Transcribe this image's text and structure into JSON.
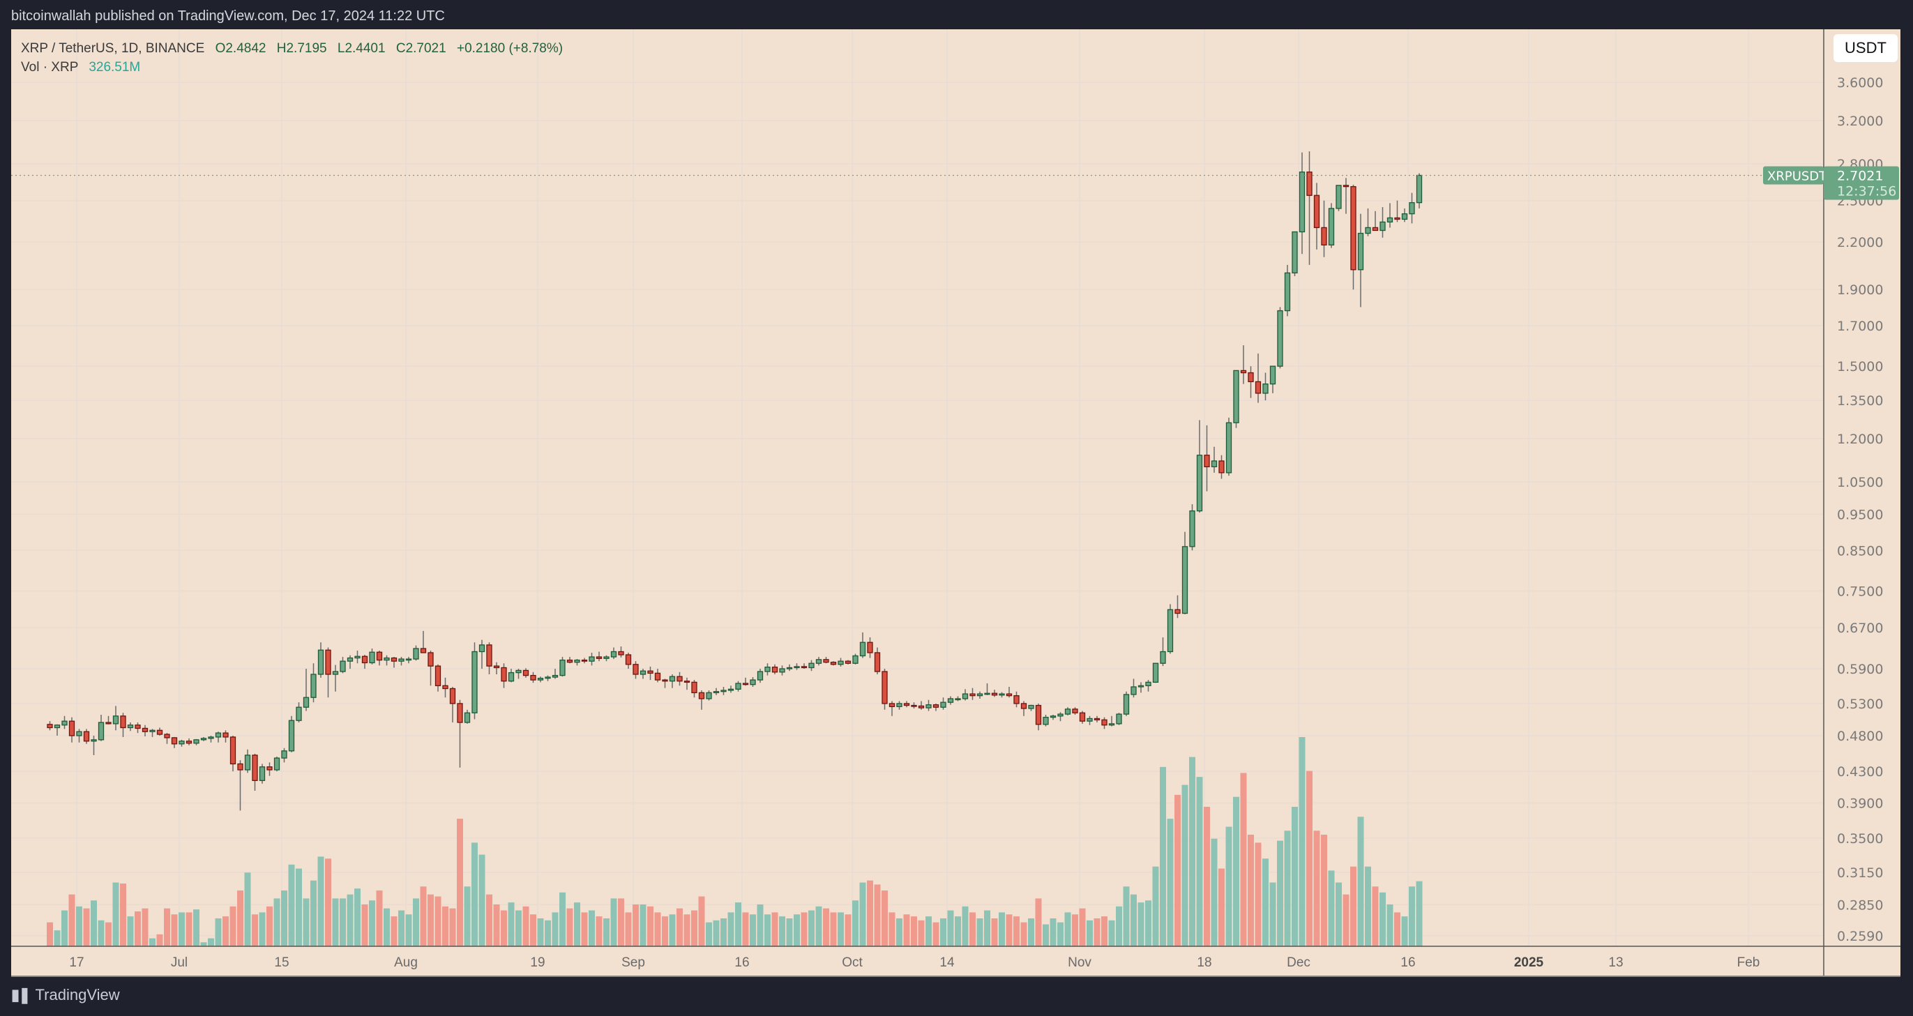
{
  "header": {
    "published": "bitcoinwallah published on TradingView.com, Dec 17, 2024 11:22 UTC"
  },
  "legend": {
    "symbol": "XRP / TetherUS, 1D, BINANCE",
    "open": "O2.4842",
    "high": "H2.7195",
    "low": "L2.4401",
    "close": "C2.7021",
    "change": "+0.2180 (+8.78%)",
    "vol_label": "Vol · XRP",
    "vol_value": "326.51M"
  },
  "price_axis": {
    "currency_button": "USDT",
    "ticks": [
      "3.6000",
      "3.2000",
      "2.8000",
      "2.5000",
      "2.2000",
      "1.9000",
      "1.7000",
      "1.5000",
      "1.3500",
      "1.2000",
      "1.0500",
      "0.9500",
      "0.8500",
      "0.7500",
      "0.6700",
      "0.5900",
      "0.5300",
      "0.4800",
      "0.4300",
      "0.3900",
      "0.3500",
      "0.3150",
      "0.2850",
      "0.2590"
    ],
    "last_price_label": {
      "symbol": "XRPUSDT",
      "price": "2.7021",
      "countdown": "12:37:56"
    }
  },
  "time_axis": {
    "labels": [
      {
        "text": "17",
        "x": 110,
        "bold": false
      },
      {
        "text": "Jul",
        "x": 257,
        "bold": false
      },
      {
        "text": "15",
        "x": 404,
        "bold": false
      },
      {
        "text": "Aug",
        "x": 582,
        "bold": false
      },
      {
        "text": "19",
        "x": 771,
        "bold": false
      },
      {
        "text": "Sep",
        "x": 908,
        "bold": false
      },
      {
        "text": "16",
        "x": 1064,
        "bold": false
      },
      {
        "text": "Oct",
        "x": 1222,
        "bold": false
      },
      {
        "text": "14",
        "x": 1358,
        "bold": false
      },
      {
        "text": "Nov",
        "x": 1548,
        "bold": false
      },
      {
        "text": "18",
        "x": 1727,
        "bold": false
      },
      {
        "text": "Dec",
        "x": 1862,
        "bold": false
      },
      {
        "text": "16",
        "x": 2019,
        "bold": false
      },
      {
        "text": "2025",
        "x": 2192,
        "bold": true
      },
      {
        "text": "13",
        "x": 2317,
        "bold": false
      },
      {
        "text": "Feb",
        "x": 2507,
        "bold": false
      }
    ]
  },
  "footer": {
    "brand": "TradingView"
  },
  "colors": {
    "background": "#f2e0d0",
    "up_body": "#6aa584",
    "up_border": "#1e5a38",
    "down_body": "#d9503f",
    "down_border": "#6e1410",
    "vol_up": "#8dc3b5",
    "vol_down": "#f0998d",
    "grid": "#e8dcd4",
    "last_price": "#6aa584"
  },
  "chart_data": {
    "type": "candlestick",
    "title": "XRP / TetherUS, 1D, BINANCE",
    "scale": "log",
    "ylim": [
      0.259,
      3.6
    ],
    "x_range": [
      "2024-06-08",
      "2025-02-10"
    ],
    "series_fields": [
      "open",
      "high",
      "low",
      "close",
      "volume_M"
    ],
    "candles": [
      [
        0.497,
        0.502,
        0.488,
        0.492,
        120
      ],
      [
        0.492,
        0.497,
        0.48,
        0.496,
        80
      ],
      [
        0.496,
        0.51,
        0.49,
        0.502,
        180
      ],
      [
        0.502,
        0.508,
        0.47,
        0.48,
        260
      ],
      [
        0.48,
        0.49,
        0.47,
        0.486,
        200
      ],
      [
        0.486,
        0.49,
        0.468,
        0.472,
        190
      ],
      [
        0.472,
        0.48,
        0.452,
        0.474,
        230
      ],
      [
        0.474,
        0.512,
        0.472,
        0.5,
        130
      ],
      [
        0.5,
        0.51,
        0.497,
        0.498,
        120
      ],
      [
        0.498,
        0.526,
        0.488,
        0.51,
        320
      ],
      [
        0.51,
        0.515,
        0.478,
        0.492,
        315
      ],
      [
        0.492,
        0.5,
        0.487,
        0.496,
        150
      ],
      [
        0.496,
        0.5,
        0.484,
        0.491,
        175
      ],
      [
        0.491,
        0.496,
        0.479,
        0.486,
        190
      ],
      [
        0.486,
        0.49,
        0.478,
        0.488,
        40
      ],
      [
        0.488,
        0.492,
        0.48,
        0.482,
        60
      ],
      [
        0.482,
        0.484,
        0.468,
        0.477,
        190
      ],
      [
        0.477,
        0.478,
        0.462,
        0.468,
        160
      ],
      [
        0.468,
        0.474,
        0.464,
        0.472,
        170
      ],
      [
        0.472,
        0.476,
        0.466,
        0.469,
        170
      ],
      [
        0.469,
        0.475,
        0.466,
        0.474,
        185
      ],
      [
        0.474,
        0.478,
        0.472,
        0.476,
        20
      ],
      [
        0.476,
        0.48,
        0.47,
        0.478,
        40
      ],
      [
        0.478,
        0.486,
        0.47,
        0.484,
        140
      ],
      [
        0.484,
        0.488,
        0.47,
        0.478,
        150
      ],
      [
        0.478,
        0.48,
        0.43,
        0.44,
        200
      ],
      [
        0.44,
        0.445,
        0.381,
        0.432,
        280
      ],
      [
        0.432,
        0.46,
        0.428,
        0.452,
        370
      ],
      [
        0.452,
        0.454,
        0.405,
        0.418,
        160
      ],
      [
        0.418,
        0.44,
        0.414,
        0.436,
        170
      ],
      [
        0.436,
        0.442,
        0.424,
        0.432,
        200
      ],
      [
        0.432,
        0.45,
        0.43,
        0.448,
        240
      ],
      [
        0.448,
        0.462,
        0.442,
        0.458,
        280
      ],
      [
        0.458,
        0.51,
        0.456,
        0.503,
        410
      ],
      [
        0.503,
        0.532,
        0.5,
        0.524,
        390
      ],
      [
        0.524,
        0.59,
        0.518,
        0.54,
        240
      ],
      [
        0.54,
        0.6,
        0.532,
        0.58,
        330
      ],
      [
        0.58,
        0.64,
        0.574,
        0.625,
        450
      ],
      [
        0.625,
        0.63,
        0.54,
        0.58,
        440
      ],
      [
        0.58,
        0.597,
        0.55,
        0.585,
        240
      ],
      [
        0.585,
        0.612,
        0.582,
        0.604,
        240
      ],
      [
        0.604,
        0.615,
        0.59,
        0.61,
        260
      ],
      [
        0.61,
        0.624,
        0.6,
        0.613,
        290
      ],
      [
        0.613,
        0.616,
        0.59,
        0.601,
        210
      ],
      [
        0.601,
        0.628,
        0.598,
        0.621,
        230
      ],
      [
        0.621,
        0.624,
        0.596,
        0.606,
        280
      ],
      [
        0.606,
        0.615,
        0.596,
        0.61,
        190
      ],
      [
        0.61,
        0.612,
        0.592,
        0.604,
        150
      ],
      [
        0.604,
        0.612,
        0.596,
        0.608,
        180
      ],
      [
        0.608,
        0.612,
        0.6,
        0.608,
        160
      ],
      [
        0.608,
        0.634,
        0.605,
        0.628,
        240
      ],
      [
        0.628,
        0.663,
        0.625,
        0.62,
        300
      ],
      [
        0.62,
        0.624,
        0.56,
        0.595,
        260
      ],
      [
        0.595,
        0.598,
        0.55,
        0.56,
        250
      ],
      [
        0.56,
        0.574,
        0.54,
        0.555,
        200
      ],
      [
        0.555,
        0.558,
        0.5,
        0.53,
        190
      ],
      [
        0.53,
        0.536,
        0.435,
        0.5,
        640
      ],
      [
        0.5,
        0.52,
        0.498,
        0.515,
        300
      ],
      [
        0.515,
        0.64,
        0.505,
        0.622,
        520
      ],
      [
        0.622,
        0.645,
        0.59,
        0.635,
        460
      ],
      [
        0.635,
        0.64,
        0.58,
        0.595,
        260
      ],
      [
        0.595,
        0.602,
        0.58,
        0.592,
        210
      ],
      [
        0.592,
        0.6,
        0.556,
        0.568,
        180
      ],
      [
        0.568,
        0.59,
        0.566,
        0.583,
        220
      ],
      [
        0.583,
        0.59,
        0.572,
        0.587,
        180
      ],
      [
        0.587,
        0.591,
        0.574,
        0.578,
        200
      ],
      [
        0.578,
        0.584,
        0.565,
        0.57,
        160
      ],
      [
        0.57,
        0.576,
        0.566,
        0.573,
        140
      ],
      [
        0.573,
        0.578,
        0.568,
        0.575,
        130
      ],
      [
        0.575,
        0.59,
        0.572,
        0.578,
        170
      ],
      [
        0.578,
        0.612,
        0.576,
        0.606,
        270
      ],
      [
        0.606,
        0.612,
        0.6,
        0.602,
        190
      ],
      [
        0.602,
        0.608,
        0.596,
        0.606,
        220
      ],
      [
        0.606,
        0.61,
        0.6,
        0.604,
        170
      ],
      [
        0.604,
        0.62,
        0.596,
        0.612,
        180
      ],
      [
        0.612,
        0.622,
        0.604,
        0.609,
        150
      ],
      [
        0.609,
        0.615,
        0.604,
        0.612,
        140
      ],
      [
        0.612,
        0.63,
        0.608,
        0.622,
        240
      ],
      [
        0.622,
        0.632,
        0.611,
        0.616,
        240
      ],
      [
        0.616,
        0.62,
        0.59,
        0.598,
        170
      ],
      [
        0.598,
        0.604,
        0.572,
        0.58,
        210
      ],
      [
        0.58,
        0.59,
        0.572,
        0.586,
        210
      ],
      [
        0.586,
        0.594,
        0.57,
        0.582,
        200
      ],
      [
        0.582,
        0.59,
        0.566,
        0.57,
        170
      ],
      [
        0.57,
        0.572,
        0.556,
        0.568,
        150
      ],
      [
        0.568,
        0.58,
        0.556,
        0.576,
        160
      ],
      [
        0.576,
        0.584,
        0.56,
        0.568,
        190
      ],
      [
        0.568,
        0.574,
        0.553,
        0.566,
        160
      ],
      [
        0.566,
        0.57,
        0.54,
        0.548,
        180
      ],
      [
        0.548,
        0.552,
        0.52,
        0.538,
        250
      ],
      [
        0.538,
        0.552,
        0.535,
        0.548,
        120
      ],
      [
        0.548,
        0.556,
        0.544,
        0.55,
        130
      ],
      [
        0.55,
        0.558,
        0.544,
        0.552,
        140
      ],
      [
        0.552,
        0.56,
        0.548,
        0.554,
        170
      ],
      [
        0.554,
        0.568,
        0.55,
        0.564,
        220
      ],
      [
        0.564,
        0.574,
        0.56,
        0.562,
        170
      ],
      [
        0.562,
        0.575,
        0.558,
        0.57,
        160
      ],
      [
        0.57,
        0.59,
        0.565,
        0.585,
        210
      ],
      [
        0.585,
        0.6,
        0.578,
        0.593,
        160
      ],
      [
        0.593,
        0.598,
        0.58,
        0.584,
        170
      ],
      [
        0.584,
        0.596,
        0.578,
        0.59,
        150
      ],
      [
        0.59,
        0.598,
        0.586,
        0.592,
        140
      ],
      [
        0.592,
        0.6,
        0.588,
        0.594,
        160
      ],
      [
        0.594,
        0.6,
        0.59,
        0.592,
        170
      ],
      [
        0.592,
        0.606,
        0.586,
        0.6,
        180
      ],
      [
        0.6,
        0.612,
        0.596,
        0.607,
        200
      ],
      [
        0.607,
        0.612,
        0.6,
        0.602,
        190
      ],
      [
        0.602,
        0.604,
        0.596,
        0.598,
        170
      ],
      [
        0.598,
        0.61,
        0.594,
        0.604,
        170
      ],
      [
        0.604,
        0.606,
        0.598,
        0.6,
        160
      ],
      [
        0.6,
        0.618,
        0.598,
        0.614,
        230
      ],
      [
        0.614,
        0.66,
        0.61,
        0.64,
        320
      ],
      [
        0.64,
        0.65,
        0.61,
        0.62,
        330
      ],
      [
        0.62,
        0.63,
        0.58,
        0.585,
        310
      ],
      [
        0.585,
        0.59,
        0.52,
        0.53,
        280
      ],
      [
        0.53,
        0.534,
        0.51,
        0.525,
        170
      ],
      [
        0.525,
        0.534,
        0.52,
        0.53,
        140
      ],
      [
        0.53,
        0.534,
        0.524,
        0.527,
        160
      ],
      [
        0.527,
        0.532,
        0.522,
        0.526,
        150
      ],
      [
        0.526,
        0.534,
        0.52,
        0.523,
        130
      ],
      [
        0.523,
        0.536,
        0.518,
        0.528,
        150
      ],
      [
        0.528,
        0.53,
        0.518,
        0.524,
        120
      ],
      [
        0.524,
        0.54,
        0.52,
        0.532,
        140
      ],
      [
        0.532,
        0.542,
        0.528,
        0.538,
        180
      ],
      [
        0.538,
        0.542,
        0.534,
        0.538,
        150
      ],
      [
        0.538,
        0.554,
        0.535,
        0.546,
        200
      ],
      [
        0.546,
        0.556,
        0.536,
        0.543,
        170
      ],
      [
        0.543,
        0.55,
        0.538,
        0.546,
        140
      ],
      [
        0.546,
        0.564,
        0.544,
        0.547,
        180
      ],
      [
        0.547,
        0.553,
        0.541,
        0.544,
        140
      ],
      [
        0.544,
        0.549,
        0.54,
        0.546,
        170
      ],
      [
        0.546,
        0.558,
        0.54,
        0.543,
        160
      ],
      [
        0.543,
        0.55,
        0.524,
        0.53,
        150
      ],
      [
        0.53,
        0.534,
        0.51,
        0.522,
        120
      ],
      [
        0.522,
        0.528,
        0.518,
        0.527,
        140
      ],
      [
        0.527,
        0.53,
        0.488,
        0.497,
        240
      ],
      [
        0.497,
        0.512,
        0.494,
        0.508,
        110
      ],
      [
        0.508,
        0.512,
        0.504,
        0.51,
        140
      ],
      [
        0.51,
        0.516,
        0.502,
        0.513,
        120
      ],
      [
        0.513,
        0.524,
        0.511,
        0.521,
        170
      ],
      [
        0.521,
        0.524,
        0.512,
        0.515,
        160
      ],
      [
        0.515,
        0.518,
        0.498,
        0.502,
        190
      ],
      [
        0.502,
        0.51,
        0.496,
        0.506,
        130
      ],
      [
        0.506,
        0.51,
        0.5,
        0.504,
        140
      ],
      [
        0.504,
        0.508,
        0.49,
        0.496,
        150
      ],
      [
        0.496,
        0.51,
        0.494,
        0.498,
        130
      ],
      [
        0.498,
        0.515,
        0.496,
        0.513,
        200
      ],
      [
        0.513,
        0.55,
        0.51,
        0.545,
        300
      ],
      [
        0.545,
        0.572,
        0.54,
        0.558,
        260
      ],
      [
        0.558,
        0.566,
        0.548,
        0.56,
        220
      ],
      [
        0.56,
        0.57,
        0.55,
        0.566,
        230
      ],
      [
        0.566,
        0.6,
        0.565,
        0.6,
        400
      ],
      [
        0.6,
        0.65,
        0.595,
        0.622,
        900
      ],
      [
        0.622,
        0.72,
        0.618,
        0.708,
        640
      ],
      [
        0.708,
        0.74,
        0.69,
        0.7,
        760
      ],
      [
        0.7,
        0.9,
        0.698,
        0.86,
        810
      ],
      [
        0.86,
        0.98,
        0.85,
        0.96,
        950
      ],
      [
        0.96,
        1.27,
        0.955,
        1.14,
        850
      ],
      [
        1.14,
        1.25,
        1.02,
        1.1,
        700
      ],
      [
        1.1,
        1.17,
        1.08,
        1.12,
        540
      ],
      [
        1.12,
        1.14,
        1.06,
        1.08,
        390
      ],
      [
        1.08,
        1.28,
        1.07,
        1.26,
        600
      ],
      [
        1.26,
        1.46,
        1.24,
        1.48,
        750
      ],
      [
        1.48,
        1.6,
        1.42,
        1.47,
        870
      ],
      [
        1.47,
        1.5,
        1.36,
        1.43,
        560
      ],
      [
        1.43,
        1.56,
        1.34,
        1.38,
        520
      ],
      [
        1.38,
        1.47,
        1.35,
        1.42,
        440
      ],
      [
        1.42,
        1.5,
        1.38,
        1.5,
        320
      ],
      [
        1.5,
        1.8,
        1.49,
        1.78,
        530
      ],
      [
        1.78,
        2.05,
        1.75,
        2.0,
        580
      ],
      [
        2.0,
        2.2,
        1.98,
        2.27,
        700
      ],
      [
        2.27,
        2.9,
        2.12,
        2.73,
        1050
      ],
      [
        2.73,
        2.91,
        2.05,
        2.54,
        880
      ],
      [
        2.54,
        2.64,
        2.15,
        2.3,
        580
      ],
      [
        2.3,
        2.5,
        2.1,
        2.18,
        560
      ],
      [
        2.18,
        2.48,
        2.16,
        2.44,
        380
      ],
      [
        2.44,
        2.62,
        2.42,
        2.62,
        320
      ],
      [
        2.62,
        2.68,
        2.4,
        2.61,
        260
      ],
      [
        2.61,
        2.625,
        1.9,
        2.02,
        400
      ],
      [
        2.02,
        2.4,
        1.8,
        2.26,
        650
      ],
      [
        2.26,
        2.44,
        2.24,
        2.3,
        400
      ],
      [
        2.3,
        2.42,
        2.29,
        2.28,
        300
      ],
      [
        2.28,
        2.45,
        2.23,
        2.34,
        270
      ],
      [
        2.34,
        2.48,
        2.3,
        2.37,
        210
      ],
      [
        2.37,
        2.5,
        2.34,
        2.36,
        170
      ],
      [
        2.36,
        2.44,
        2.34,
        2.4,
        150
      ],
      [
        2.4,
        2.56,
        2.33,
        2.484,
        300
      ],
      [
        2.484,
        2.7195,
        2.4401,
        2.7021,
        326.51
      ]
    ]
  }
}
